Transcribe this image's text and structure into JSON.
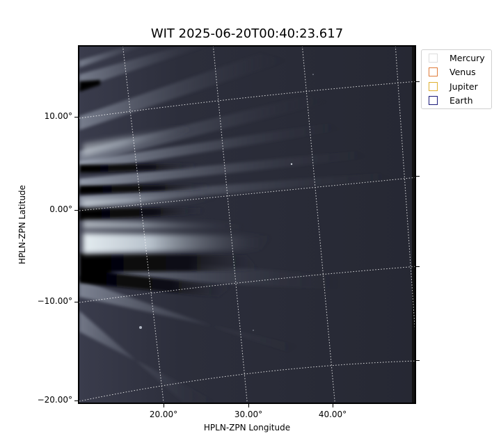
{
  "title": "WIT 2025-06-20T00:40:23.617",
  "xlabel": "HPLN-ZPN Longitude",
  "ylabel": "HPLN-ZPN Latitude",
  "x_ticks": [
    "20.00°",
    "30.00°",
    "40.00°"
  ],
  "y_ticks": [
    "10.00°",
    "0.00°",
    "−10.00°",
    "−20.00°"
  ],
  "legend": [
    {
      "label": "Mercury",
      "color": "#dddddd"
    },
    {
      "label": "Venus",
      "color": "#e07b39"
    },
    {
      "label": "Jupiter",
      "color": "#e0b030"
    },
    {
      "label": "Earth",
      "color": "#1a1a7a"
    }
  ]
}
